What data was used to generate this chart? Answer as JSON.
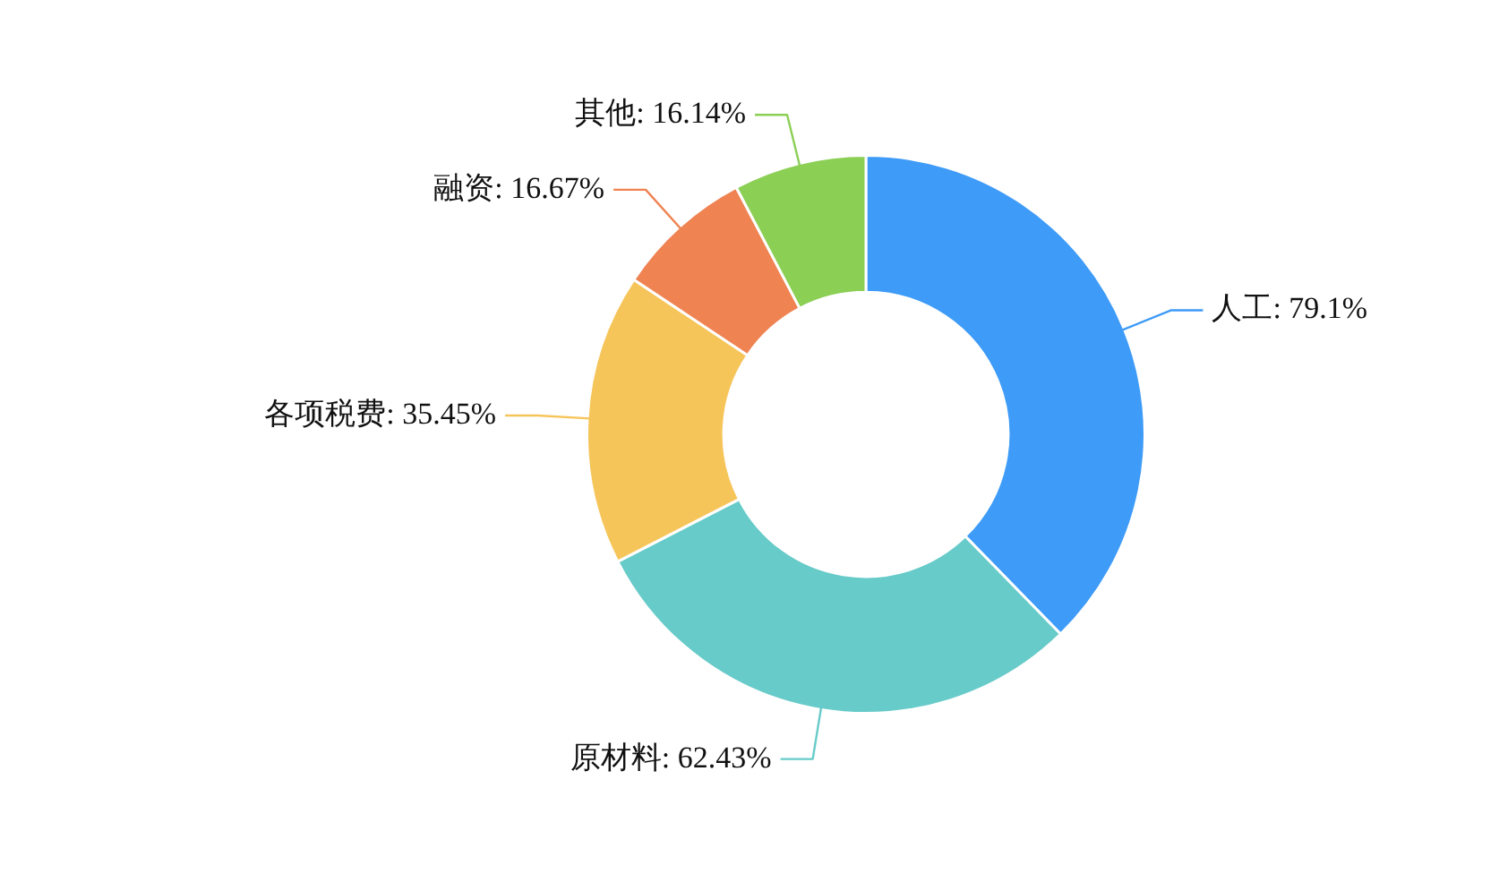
{
  "chart_data": {
    "type": "donut",
    "categories": [
      "人工",
      "原材料",
      "各项税费",
      "融资",
      "其他"
    ],
    "values": [
      79.1,
      62.43,
      35.45,
      16.67,
      16.14
    ],
    "value_labels": [
      "79.1%",
      "62.43%",
      "35.45%",
      "16.67%",
      "16.14%"
    ],
    "colors": [
      "#3e9bf7",
      "#67cbc9",
      "#f6c55a",
      "#ef8352",
      "#8bcf55"
    ],
    "legend": false
  }
}
